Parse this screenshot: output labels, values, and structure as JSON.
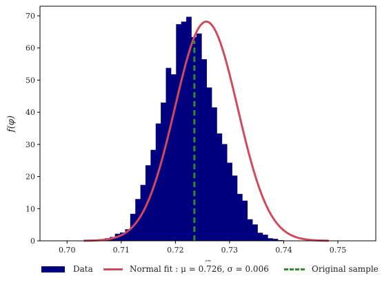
{
  "chart_data": {
    "type": "bar",
    "xlabel": "φ",
    "ylabel": "f(φ)",
    "xlim": [
      0.695,
      0.757
    ],
    "ylim": [
      0,
      73
    ],
    "xticks": [
      "0.70",
      "0.71",
      "0.72",
      "0.73",
      "0.74",
      "0.75"
    ],
    "yticks": [
      "0",
      "10",
      "20",
      "30",
      "40",
      "50",
      "60",
      "70"
    ],
    "histogram": {
      "name": "Data",
      "color": "#00007f",
      "bin_start": 0.7032,
      "bin_width": 0.00094,
      "values": [
        0.2,
        0.2,
        0.3,
        0.5,
        0.8,
        1.2,
        2.2,
        2.6,
        3.6,
        8.4,
        13,
        17.4,
        23.5,
        28.3,
        36.5,
        43,
        53.8,
        51.8,
        67.4,
        68.2,
        69.7,
        63.4,
        64.5,
        56.5,
        47.7,
        41.5,
        33.4,
        30.1,
        24.3,
        20.3,
        14.6,
        12.5,
        6.7,
        5.1,
        2.5,
        1.9,
        0.8,
        0.6,
        0.2,
        0.1,
        0.1
      ]
    },
    "fit": {
      "name": "Normal fit : μ = 0.726,  σ = 0.006",
      "mu": 0.7257,
      "sigma": 0.0058,
      "peak": 68.2,
      "color": "#d1495b"
    },
    "original_sample": {
      "name": "Original sample",
      "x": 0.7235,
      "y_top": 62.3,
      "color": "#2e8b2e"
    },
    "legend_placement": "bottom-center"
  },
  "legend": {
    "data_label": "Data",
    "fit_label": "Normal fit : μ = 0.726,  σ = 0.006",
    "sample_label": "Original sample"
  }
}
